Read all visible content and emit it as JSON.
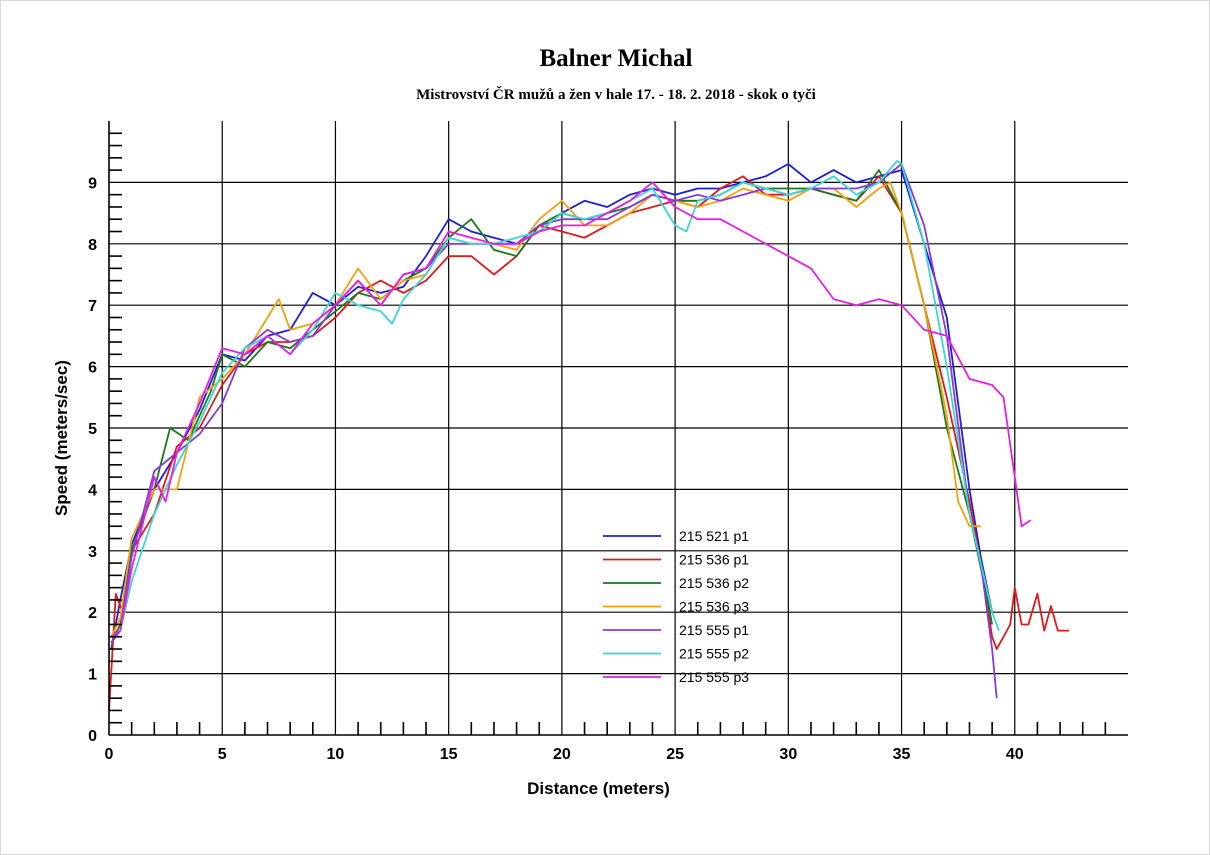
{
  "chart_data": {
    "type": "line",
    "title": "Balner Michal",
    "subtitle": "Mistrovství ČR mužů a žen v hale 17. - 18. 2. 2018 - skok o tyči",
    "xlabel": "Distance (meters)",
    "ylabel": "Speed (meters/sec)",
    "xlim": [
      0,
      45
    ],
    "ylim": [
      0,
      10
    ],
    "x_ticks": [
      0,
      5,
      10,
      15,
      20,
      25,
      30,
      35,
      40
    ],
    "y_ticks": [
      0,
      1,
      2,
      3,
      4,
      5,
      6,
      7,
      8,
      9
    ],
    "grid": true,
    "legend_position": "bottom-center",
    "series": [
      {
        "name": "215 521 p1",
        "color": "#1f1fd6",
        "x": [
          0.1,
          0.5,
          1,
          2,
          3,
          4,
          5,
          6,
          7,
          8,
          9,
          10,
          11,
          12,
          13,
          14,
          15,
          16,
          17,
          18,
          19,
          20,
          21,
          22,
          23,
          24,
          25,
          26,
          27,
          28,
          29,
          30,
          31,
          32,
          33,
          34,
          35,
          36,
          37,
          38,
          38.5,
          39
        ],
        "y": [
          1.4,
          2.2,
          3.1,
          4.0,
          4.6,
          5.3,
          6.2,
          6.1,
          6.5,
          6.6,
          7.2,
          7.0,
          7.3,
          7.2,
          7.3,
          7.8,
          8.4,
          8.2,
          8.1,
          8.0,
          8.2,
          8.5,
          8.7,
          8.6,
          8.8,
          8.9,
          8.8,
          8.9,
          8.9,
          9.0,
          9.1,
          9.3,
          9.0,
          9.2,
          9.0,
          9.1,
          9.2,
          8.0,
          6.8,
          4.0,
          2.9,
          2.0
        ]
      },
      {
        "name": "215 536 p1",
        "color": "#e01a1a",
        "x": [
          0,
          0.3,
          0.6,
          1,
          2,
          3,
          4,
          5,
          6,
          7,
          8,
          9,
          10,
          11,
          12,
          13,
          14,
          15,
          16,
          17,
          18,
          19,
          20,
          21,
          22,
          23,
          24,
          25,
          26,
          27,
          28,
          29,
          30,
          31,
          32,
          33,
          34,
          35,
          36,
          37,
          38,
          38.6,
          39,
          39.2,
          39.5,
          39.8,
          40,
          40.3,
          40.6,
          41,
          41.3,
          41.6,
          41.9,
          42.2,
          42.4
        ],
        "y": [
          0.4,
          2.3,
          2.0,
          3.0,
          3.6,
          4.7,
          5.0,
          5.7,
          6.2,
          6.4,
          6.4,
          6.5,
          6.8,
          7.2,
          7.4,
          7.2,
          7.4,
          7.8,
          7.8,
          7.5,
          7.8,
          8.3,
          8.2,
          8.1,
          8.3,
          8.5,
          8.6,
          8.7,
          8.6,
          8.9,
          9.1,
          8.8,
          8.8,
          8.9,
          8.8,
          8.7,
          9.1,
          8.5,
          7.0,
          5.5,
          3.8,
          2.6,
          1.6,
          1.4,
          1.6,
          1.8,
          2.4,
          1.8,
          1.8,
          2.3,
          1.7,
          2.1,
          1.7,
          1.7,
          1.7
        ]
      },
      {
        "name": "215 536 p2",
        "color": "#1a7a1a",
        "x": [
          0.1,
          0.5,
          1,
          2,
          2.7,
          3.5,
          4.5,
          5,
          6,
          7,
          8,
          9,
          10,
          11,
          12,
          13,
          14,
          15,
          16,
          17,
          18,
          19,
          20,
          21,
          22,
          23,
          24,
          25,
          26,
          27,
          28,
          29,
          30,
          31,
          32,
          33,
          34,
          35,
          36,
          37,
          38,
          38.8,
          39
        ],
        "y": [
          1.5,
          1.8,
          3.0,
          4.0,
          5.0,
          4.8,
          5.6,
          6.2,
          6.0,
          6.4,
          6.3,
          6.6,
          6.9,
          7.2,
          7.1,
          7.4,
          7.6,
          8.1,
          8.4,
          7.9,
          7.8,
          8.3,
          8.5,
          8.4,
          8.5,
          8.6,
          8.8,
          8.7,
          8.7,
          8.8,
          9.0,
          8.9,
          8.9,
          8.9,
          8.8,
          8.7,
          9.2,
          8.5,
          7.0,
          5.0,
          3.6,
          2.2,
          1.8
        ]
      },
      {
        "name": "215 536 p3",
        "color": "#f5a00a",
        "x": [
          0.1,
          0.5,
          1,
          2,
          3,
          4,
          5,
          6,
          7,
          7.5,
          8,
          9,
          10,
          11,
          12,
          13,
          14,
          15,
          16,
          17,
          18,
          19,
          20,
          21,
          22,
          23,
          24,
          25,
          26,
          27,
          28,
          29,
          30,
          31,
          32,
          33,
          34,
          34.5,
          35,
          36,
          37,
          37.5,
          38,
          38.5
        ],
        "y": [
          1.6,
          1.9,
          3.2,
          4.0,
          4.0,
          5.5,
          5.8,
          6.2,
          6.8,
          7.1,
          6.6,
          6.7,
          7.0,
          7.6,
          7.1,
          7.4,
          7.5,
          8.1,
          8.0,
          8.0,
          7.9,
          8.4,
          8.7,
          8.3,
          8.3,
          8.5,
          8.8,
          8.7,
          8.6,
          8.7,
          8.9,
          8.8,
          8.7,
          8.9,
          8.9,
          8.6,
          8.9,
          9.0,
          8.5,
          7.0,
          5.2,
          3.8,
          3.4,
          3.4
        ]
      },
      {
        "name": "215 555 p1",
        "color": "#8a3ad6",
        "x": [
          0.1,
          0.5,
          1,
          2,
          3,
          4,
          5,
          6,
          7,
          8,
          9,
          10,
          11,
          12,
          13,
          14,
          15,
          16,
          17,
          18,
          19,
          20,
          21,
          22,
          23,
          24,
          25,
          26,
          27,
          28,
          29,
          30,
          31,
          32,
          33,
          34,
          35,
          36,
          37,
          38,
          38.5,
          39,
          39.2
        ],
        "y": [
          1.5,
          1.7,
          2.9,
          4.3,
          4.6,
          4.9,
          5.4,
          6.3,
          6.6,
          6.4,
          6.5,
          7.0,
          7.4,
          7.0,
          7.5,
          7.6,
          8.0,
          8.0,
          8.0,
          8.0,
          8.3,
          8.4,
          8.4,
          8.4,
          8.6,
          8.8,
          8.7,
          8.8,
          8.7,
          8.8,
          8.9,
          8.8,
          8.9,
          8.9,
          8.9,
          9.0,
          9.3,
          8.3,
          6.5,
          3.6,
          2.8,
          1.4,
          0.6
        ]
      },
      {
        "name": "215 555 p2",
        "color": "#3ad6d6",
        "x": [
          0.1,
          0.5,
          1,
          2,
          3,
          4,
          5,
          6,
          7,
          8,
          9,
          10,
          11,
          12,
          12.5,
          13,
          14,
          15,
          16,
          17,
          18,
          19,
          20,
          21,
          22,
          23,
          24,
          25,
          25.5,
          26,
          27,
          28,
          29,
          30,
          31,
          32,
          33,
          34,
          34.8,
          35,
          36,
          37,
          38,
          38.5,
          39,
          39.3
        ],
        "y": [
          1.6,
          1.7,
          2.5,
          3.6,
          4.4,
          5.1,
          5.9,
          6.3,
          6.5,
          6.2,
          6.6,
          7.2,
          7.0,
          6.9,
          6.7,
          7.1,
          7.5,
          8.1,
          8.0,
          8.0,
          8.1,
          8.2,
          8.5,
          8.4,
          8.5,
          8.7,
          8.9,
          8.3,
          8.2,
          8.7,
          8.8,
          9.0,
          8.9,
          8.8,
          8.9,
          9.1,
          8.8,
          9.0,
          9.35,
          9.3,
          8.0,
          6.0,
          3.6,
          2.8,
          2.0,
          1.7
        ]
      },
      {
        "name": "215 555 p3",
        "color": "#e61ee6",
        "x": [
          0.1,
          0.5,
          1,
          2,
          2.5,
          3,
          4,
          5,
          6,
          7,
          8,
          9,
          10,
          11,
          12,
          13,
          14,
          15,
          16,
          17,
          18,
          19,
          20,
          21,
          22,
          23,
          24,
          25,
          26,
          27,
          28,
          29,
          30,
          31,
          32,
          33,
          34,
          35,
          36,
          37,
          38,
          39,
          39.5,
          40,
          40.3,
          40.7
        ],
        "y": [
          1.6,
          1.7,
          2.7,
          4.2,
          3.8,
          4.6,
          5.4,
          6.3,
          6.2,
          6.5,
          6.2,
          6.7,
          7.0,
          7.4,
          7.0,
          7.5,
          7.6,
          8.2,
          8.1,
          8.0,
          8.0,
          8.2,
          8.3,
          8.3,
          8.5,
          8.7,
          9.0,
          8.6,
          8.4,
          8.4,
          8.2,
          8.0,
          7.8,
          7.6,
          7.1,
          7.0,
          7.1,
          7.0,
          6.6,
          6.5,
          5.8,
          5.7,
          5.5,
          4.2,
          3.4,
          3.5
        ]
      }
    ]
  }
}
